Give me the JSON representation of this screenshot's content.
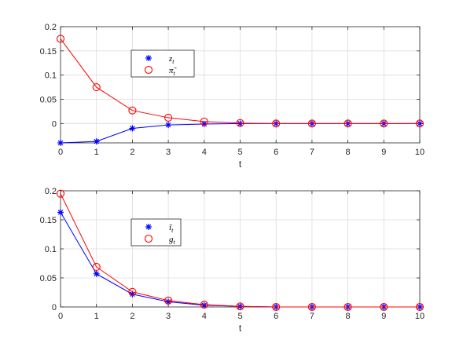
{
  "chart_data": [
    {
      "type": "line",
      "x": [
        0,
        1,
        2,
        3,
        4,
        5,
        6,
        7,
        8,
        9,
        10
      ],
      "xlabel": "t",
      "xlim": [
        0,
        10
      ],
      "ylim": [
        -0.04,
        0.2
      ],
      "xticks": [
        "0",
        "1",
        "2",
        "3",
        "4",
        "5",
        "6",
        "7",
        "8",
        "9",
        "10"
      ],
      "yticks": [
        {
          "value": 0.2,
          "label": "0.2"
        },
        {
          "value": 0.15,
          "label": "0.15"
        },
        {
          "value": 0.1,
          "label": "0.1"
        },
        {
          "value": 0.05,
          "label": "0.05"
        },
        {
          "value": 0,
          "label": "0"
        }
      ],
      "grid": true,
      "legend_position": "upper-left",
      "series": [
        {
          "name": "z_t",
          "color": "#0000ff",
          "marker": "asterisk",
          "values": [
            -0.04,
            -0.037,
            -0.01,
            -0.003,
            -0.001,
            0,
            0,
            0,
            0,
            0,
            0
          ]
        },
        {
          "name": "π̃_t",
          "color": "#ff0000",
          "marker": "circle",
          "values": [
            0.175,
            0.075,
            0.027,
            0.012,
            0.004,
            0.001,
            0,
            0,
            0,
            0,
            0
          ]
        }
      ]
    },
    {
      "type": "line",
      "x": [
        0,
        1,
        2,
        3,
        4,
        5,
        6,
        7,
        8,
        9,
        10
      ],
      "xlabel": "t",
      "xlim": [
        0,
        10
      ],
      "ylim": [
        0,
        0.2
      ],
      "xticks": [
        "0",
        "1",
        "2",
        "3",
        "4",
        "5",
        "6",
        "7",
        "8",
        "9",
        "10"
      ],
      "yticks": [
        {
          "value": 0.2,
          "label": "0.2"
        },
        {
          "value": 0.15,
          "label": "0.15"
        },
        {
          "value": 0.1,
          "label": "0.1"
        },
        {
          "value": 0.05,
          "label": "0.05"
        },
        {
          "value": 0,
          "label": "0"
        }
      ],
      "grid": true,
      "legend_position": "upper-left",
      "series": [
        {
          "name": "ĩ_t",
          "color": "#0000ff",
          "marker": "asterisk",
          "values": [
            0.163,
            0.057,
            0.022,
            0.009,
            0.003,
            0.001,
            0,
            0,
            0,
            0,
            0
          ]
        },
        {
          "name": "g_t",
          "color": "#ff0000",
          "marker": "circle",
          "values": [
            0.195,
            0.069,
            0.026,
            0.011,
            0.004,
            0.001,
            0,
            0,
            0,
            0,
            0
          ]
        }
      ]
    }
  ]
}
